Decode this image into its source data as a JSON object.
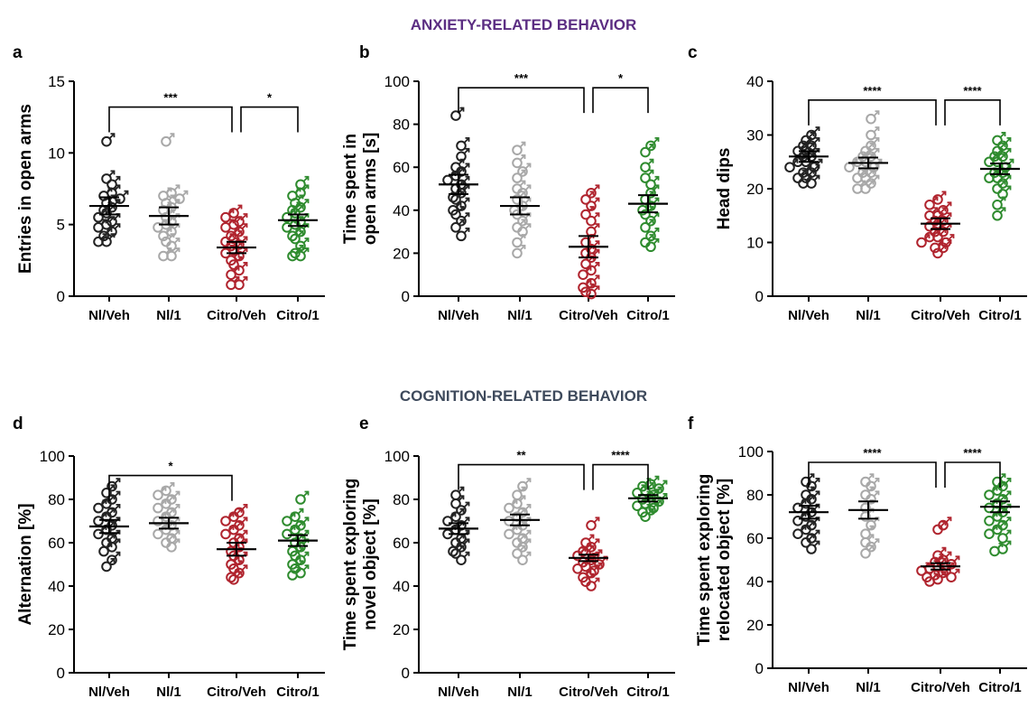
{
  "sections": [
    {
      "title": "ANXIETY-RELATED BEHAVIOR",
      "color": "#5b2d82"
    },
    {
      "title": "COGNITION-RELATED BEHAVIOR",
      "color": "#3e4a5c"
    }
  ],
  "groups": [
    "Nl/Veh",
    "Nl/1",
    "Citro/Veh",
    "Citro/1"
  ],
  "colors": [
    "#222222",
    "#a8a8a8",
    "#b0242e",
    "#2e8b2e"
  ],
  "chart_data": [
    {
      "panel": "a",
      "type": "scatter",
      "ylabel": [
        "Entries in open arms"
      ],
      "ylim": [
        0,
        15
      ],
      "yticks": [
        0,
        5,
        10,
        15
      ],
      "categories": [
        "Nl/Veh",
        "Nl/1",
        "Citro/Veh",
        "Citro/1"
      ],
      "means": [
        6.3,
        5.6,
        3.4,
        5.3
      ],
      "sem": [
        0.6,
        0.6,
        0.4,
        0.4
      ],
      "points": [
        [
          10.8,
          8.2,
          7.8,
          7.2,
          7.0,
          6.8,
          6.5,
          6.2,
          6.0,
          5.8,
          5.5,
          5.2,
          5.0,
          4.8,
          4.5,
          4.2,
          3.8,
          3.8
        ],
        [
          10.8,
          7.2,
          7.0,
          6.8,
          6.5,
          6.2,
          6.0,
          5.5,
          5.2,
          5.0,
          4.8,
          4.5,
          4.2,
          3.8,
          3.5,
          2.8,
          2.8
        ],
        [
          5.8,
          5.5,
          5.2,
          5.0,
          4.8,
          4.5,
          4.2,
          4.0,
          3.8,
          3.6,
          3.5,
          3.2,
          3.0,
          2.8,
          2.5,
          2.2,
          1.8,
          1.5,
          0.8,
          0.8
        ],
        [
          7.8,
          7.2,
          7.0,
          6.5,
          6.2,
          6.0,
          5.8,
          5.5,
          5.2,
          5.0,
          4.8,
          4.5,
          4.2,
          4.0,
          3.5,
          3.0,
          2.8,
          2.8
        ]
      ],
      "brackets": [
        {
          "from": 0,
          "to": 2,
          "y": 13.2,
          "label": "***"
        },
        {
          "from": 2,
          "to": 3,
          "y": 13.2,
          "label": "*"
        }
      ]
    },
    {
      "panel": "b",
      "type": "scatter",
      "ylabel": [
        "Time spent in",
        "open arms [s]"
      ],
      "ylim": [
        0,
        100
      ],
      "yticks": [
        0,
        20,
        40,
        60,
        80,
        100
      ],
      "categories": [
        "Nl/Veh",
        "Nl/1",
        "Citro/Veh",
        "Citro/1"
      ],
      "means": [
        52,
        42,
        23,
        43
      ],
      "sem": [
        4.5,
        4.0,
        5.0,
        4.0
      ],
      "points": [
        [
          84,
          70,
          65,
          60,
          58,
          56,
          54,
          52,
          50,
          48,
          46,
          45,
          42,
          40,
          38,
          35,
          32,
          28
        ],
        [
          68,
          62,
          58,
          55,
          50,
          48,
          45,
          42,
          40,
          38,
          35,
          32,
          30,
          25,
          20
        ],
        [
          48,
          45,
          42,
          38,
          35,
          30,
          25,
          22,
          20,
          18,
          15,
          12,
          10,
          6,
          4,
          2,
          1
        ],
        [
          70,
          67,
          60,
          55,
          52,
          48,
          45,
          42,
          40,
          38,
          35,
          32,
          28,
          25,
          23
        ]
      ],
      "brackets": [
        {
          "from": 0,
          "to": 2,
          "y": 97,
          "label": "***"
        },
        {
          "from": 2,
          "to": 3,
          "y": 97,
          "label": "*"
        }
      ]
    },
    {
      "panel": "c",
      "type": "scatter",
      "ylabel": [
        "Head dips"
      ],
      "ylim": [
        0,
        40
      ],
      "yticks": [
        0,
        10,
        20,
        30,
        40
      ],
      "categories": [
        "Nl/Veh",
        "Nl/1",
        "Citro/Veh",
        "Citro/1"
      ],
      "means": [
        26,
        24.8,
        13.5,
        23.7
      ],
      "sem": [
        1.0,
        1.0,
        1.0,
        1.0
      ],
      "points": [
        [
          30,
          29,
          28,
          28,
          27,
          27,
          26,
          26,
          25,
          25,
          24,
          24,
          23,
          23,
          22,
          22,
          21,
          21
        ],
        [
          33,
          30,
          28,
          27,
          26,
          26,
          25,
          25,
          24,
          24,
          23,
          23,
          22,
          22,
          21,
          20,
          20
        ],
        [
          18,
          17,
          16,
          15,
          15,
          14,
          14,
          13,
          13,
          12,
          12,
          11,
          11,
          10,
          10,
          9,
          9,
          8
        ],
        [
          29,
          28,
          27,
          26,
          26,
          25,
          25,
          24,
          23,
          23,
          22,
          22,
          21,
          20,
          19,
          17,
          15
        ]
      ],
      "brackets": [
        {
          "from": 0,
          "to": 2,
          "y": 36.5,
          "label": "****"
        },
        {
          "from": 2,
          "to": 3,
          "y": 36.5,
          "label": "****"
        }
      ]
    },
    {
      "panel": "d",
      "type": "scatter",
      "ylabel": [
        "Alternation [%]"
      ],
      "ylim": [
        0,
        100
      ],
      "yticks": [
        0,
        20,
        40,
        60,
        80,
        100
      ],
      "categories": [
        "Nl/Veh",
        "Nl/1",
        "Citro/Veh",
        "Citro/1"
      ],
      "means": [
        67.5,
        69,
        57,
        61
      ],
      "sem": [
        3.0,
        2.5,
        3.0,
        2.5
      ],
      "points": [
        [
          86,
          83,
          80,
          78,
          76,
          74,
          72,
          70,
          68,
          66,
          64,
          62,
          60,
          58,
          56,
          52,
          49
        ],
        [
          84,
          82,
          80,
          78,
          76,
          74,
          72,
          70,
          68,
          66,
          64,
          62,
          60,
          58
        ],
        [
          74,
          72,
          70,
          68,
          66,
          64,
          62,
          60,
          58,
          56,
          54,
          52,
          50,
          48,
          46,
          44,
          43
        ],
        [
          80,
          72,
          70,
          68,
          66,
          64,
          62,
          60,
          58,
          56,
          54,
          52,
          50,
          48,
          46,
          45
        ]
      ],
      "brackets": [
        {
          "from": 0,
          "to": 2,
          "y": 91,
          "label": "*"
        }
      ]
    },
    {
      "panel": "e",
      "type": "scatter",
      "ylabel": [
        "Time spent exploring",
        "novel object [%]"
      ],
      "ylim": [
        0,
        100
      ],
      "yticks": [
        0,
        20,
        40,
        60,
        80,
        100
      ],
      "categories": [
        "Nl/Veh",
        "Nl/1",
        "Citro/Veh",
        "Citro/1"
      ],
      "means": [
        66.5,
        70.5,
        53,
        80.5
      ],
      "sem": [
        2.5,
        2.5,
        1.5,
        1.5
      ],
      "points": [
        [
          82,
          78,
          75,
          72,
          70,
          68,
          66,
          64,
          62,
          60,
          58,
          56,
          55,
          52
        ],
        [
          86,
          82,
          78,
          76,
          74,
          72,
          70,
          68,
          66,
          64,
          62,
          60,
          58,
          55,
          52
        ],
        [
          68,
          60,
          58,
          56,
          55,
          54,
          53,
          52,
          51,
          50,
          49,
          48,
          47,
          46,
          44,
          42,
          40
        ],
        [
          87,
          86,
          85,
          84,
          83,
          82,
          81,
          80,
          79,
          78,
          77,
          76,
          75,
          74,
          72
        ]
      ],
      "brackets": [
        {
          "from": 0,
          "to": 2,
          "y": 96,
          "label": "**"
        },
        {
          "from": 2,
          "to": 3,
          "y": 96,
          "label": "****"
        }
      ]
    },
    {
      "panel": "f",
      "type": "scatter",
      "ylabel": [
        "Time spent exploring",
        "relocated object [%]"
      ],
      "ylim": [
        0,
        100
      ],
      "yticks": [
        0,
        20,
        40,
        60,
        80,
        100
      ],
      "categories": [
        "Nl/Veh",
        "Nl/1",
        "Citro/Veh",
        "Citro/1"
      ],
      "means": [
        72,
        73,
        47,
        74.5
      ],
      "sem": [
        3.0,
        4.0,
        1.5,
        2.5
      ],
      "points": [
        [
          86,
          84,
          80,
          78,
          76,
          74,
          72,
          70,
          68,
          66,
          64,
          62,
          60,
          58,
          55
        ],
        [
          86,
          84,
          80,
          78,
          74,
          70,
          66,
          62,
          58,
          56,
          53
        ],
        [
          66,
          64,
          52,
          50,
          49,
          48,
          47,
          46,
          45,
          45,
          44,
          43,
          42,
          42,
          41,
          40
        ],
        [
          86,
          84,
          82,
          80,
          78,
          76,
          74,
          72,
          70,
          68,
          66,
          64,
          62,
          60,
          55,
          54
        ]
      ],
      "brackets": [
        {
          "from": 0,
          "to": 2,
          "y": 95,
          "label": "****"
        },
        {
          "from": 2,
          "to": 3,
          "y": 95,
          "label": "****"
        }
      ]
    }
  ]
}
